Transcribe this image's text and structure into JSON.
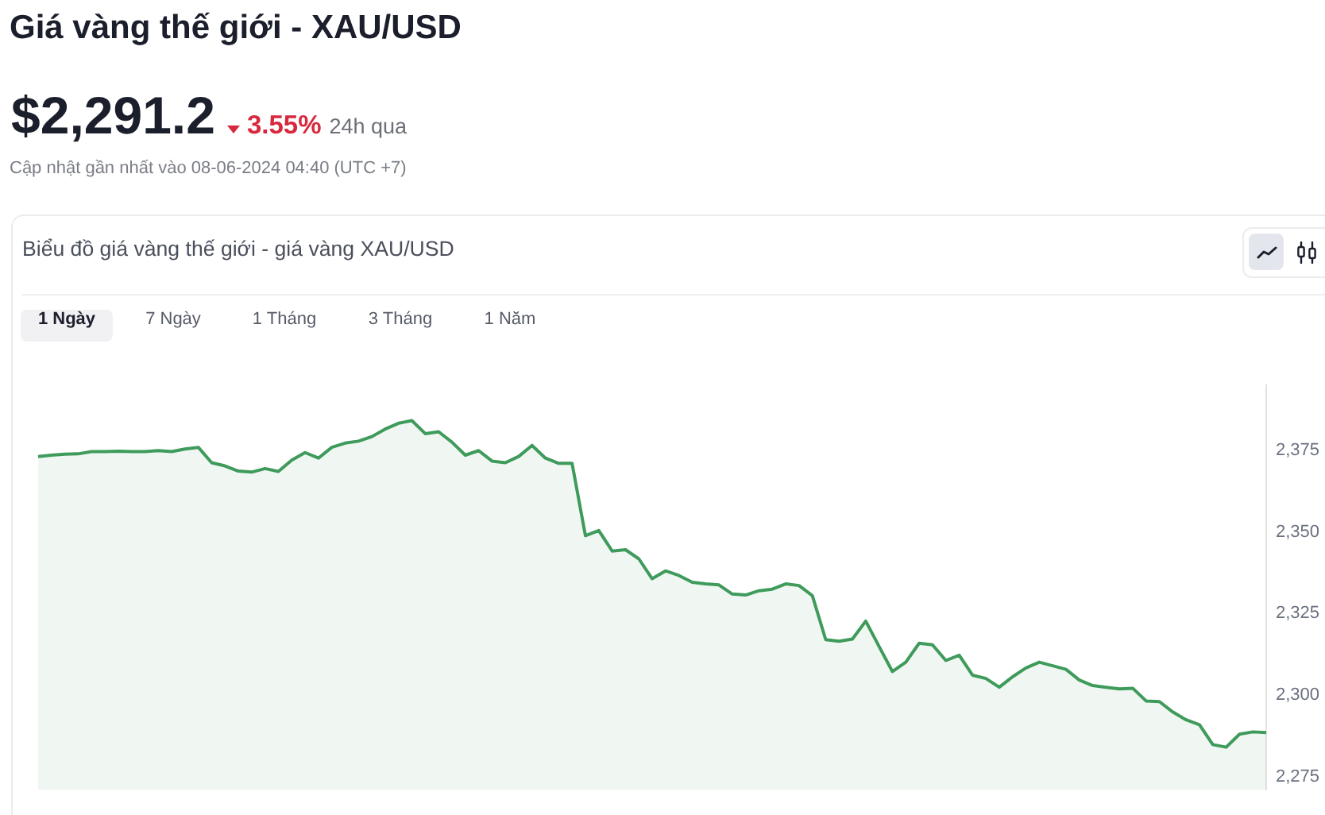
{
  "chart_data": {
    "type": "area",
    "title": "Giá vàng thế giới - XAU/USD",
    "subtitle": "Biểu đồ giá vàng thế giới - giá vàng XAU/USD",
    "annotations": [
      "$2,291.2",
      "3.55%",
      "24h qua",
      "Cập nhật gần nhất vào 08-06-2024 04:40 (UTC +7)",
      "1 Ngày",
      "7 Ngày",
      "1 Tháng",
      "3 Tháng",
      "1 Năm"
    ],
    "categories": [
      null,
      null,
      null,
      null,
      null,
      null,
      null,
      null,
      null,
      null,
      null,
      null,
      null,
      null,
      null,
      null,
      null,
      null,
      null,
      null,
      null,
      null,
      null,
      null,
      null,
      null,
      null,
      null,
      null,
      null,
      null,
      null,
      null,
      null,
      null,
      null,
      null,
      null,
      null,
      null,
      null,
      null,
      null,
      null,
      null,
      null,
      null,
      null,
      null,
      null,
      null,
      null,
      null,
      null,
      null,
      null,
      null,
      null,
      null,
      null,
      null,
      null,
      null,
      null,
      null,
      null,
      null,
      null,
      null,
      null,
      null,
      null,
      null,
      null,
      null,
      null,
      null,
      null,
      null,
      null,
      null,
      null,
      null,
      null,
      null,
      null,
      null,
      null,
      null,
      null,
      null,
      null,
      null
    ],
    "series": [
      {
        "color": "#3f9b5b",
        "values": [
          2373.2,
          2373.6,
          2373.9,
          2374.0,
          2374.7,
          2374.7,
          2374.8,
          2374.7,
          2374.7,
          2375.0,
          2374.7,
          2375.5,
          2376.0,
          2371.3,
          2370.3,
          2368.7,
          2368.4,
          2369.5,
          2368.6,
          2372.1,
          2374.4,
          2372.7,
          2376.0,
          2377.3,
          2377.9,
          2379.3,
          2381.6,
          2383.4,
          2384.2,
          2380.2,
          2380.8,
          2377.6,
          2373.6,
          2375.0,
          2371.8,
          2371.3,
          2373.2,
          2376.6,
          2372.7,
          2371.1,
          2371.1,
          2348.9,
          2350.5,
          2344.2,
          2344.6,
          2341.8,
          2335.7,
          2338.1,
          2336.7,
          2334.6,
          2334.1,
          2333.8,
          2331.0,
          2330.7,
          2332.0,
          2332.5,
          2334.1,
          2333.6,
          2330.5,
          2317.0,
          2316.5,
          2317.2,
          2322.7,
          2314.9,
          2307.2,
          2310.1,
          2315.9,
          2315.4,
          2310.6,
          2312.2,
          2306.1,
          2305.1,
          2302.4,
          2305.6,
          2308.3,
          2310.1,
          2309.0,
          2307.9,
          2304.6,
          2302.9,
          2302.4,
          2301.9,
          2302.1,
          2298.2,
          2298.0,
          2294.8,
          2292.4,
          2290.9,
          2284.8,
          2284.0,
          2288.0,
          2288.7,
          2288.5
        ]
      }
    ],
    "ylim": [
      2271,
      2395
    ],
    "yticks": [
      {
        "value": 2275,
        "label": "2,275"
      },
      {
        "value": 2300,
        "label": "2,300"
      },
      {
        "value": 2325,
        "label": "2,325"
      },
      {
        "value": 2350,
        "label": "2,350"
      },
      {
        "value": 2375,
        "label": "2,375"
      }
    ],
    "tick_labels": "y",
    "grid": false,
    "legend": false
  }
}
